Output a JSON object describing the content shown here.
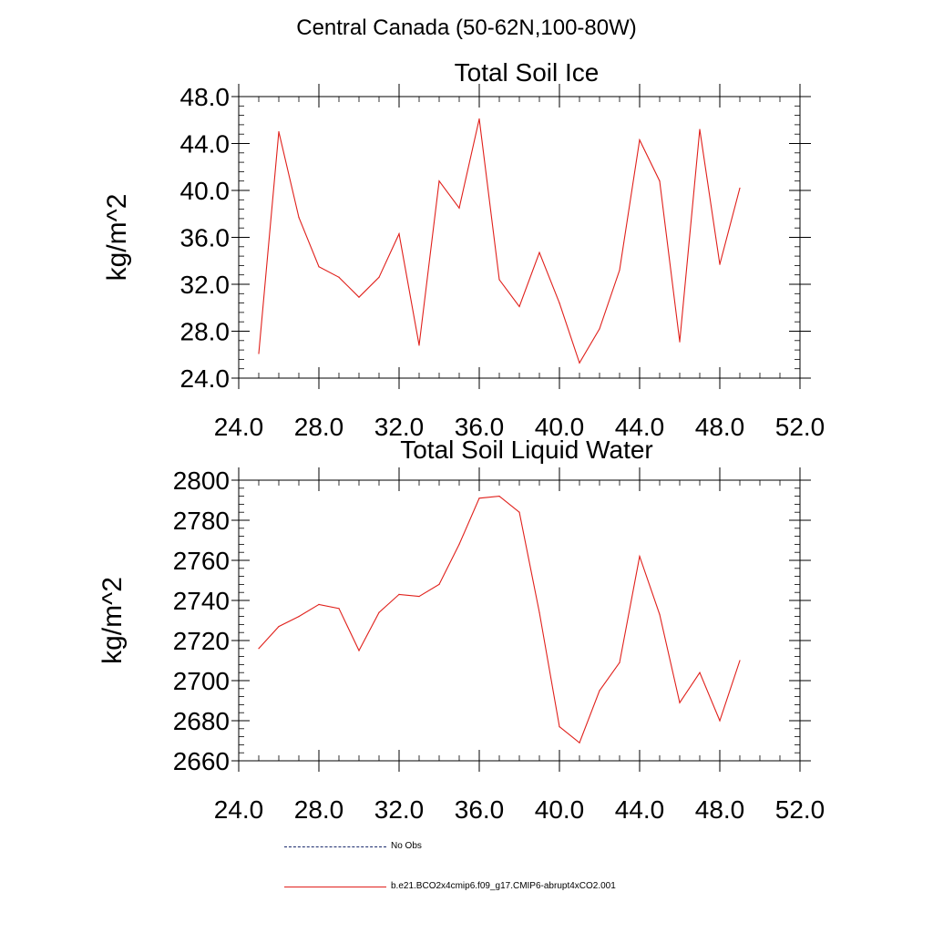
{
  "header": {
    "title": "Central Canada (50-62N,100-80W)"
  },
  "legend": {
    "items": [
      {
        "label": "No Obs",
        "color": "#1a2a6c",
        "style": "dashed"
      },
      {
        "label": "b.e21.BCO2x4cmip6.f09_g17.CMIP6-abrupt4xCO2.001",
        "color": "#e0201b",
        "style": "solid"
      }
    ]
  },
  "chart_data": [
    {
      "type": "line",
      "title": "Total Soil Ice",
      "xlabel": "",
      "ylabel": "kg/m^2",
      "xlim": [
        24,
        52
      ],
      "ylim": [
        24,
        48
      ],
      "x_ticks": [
        "24.0",
        "28.0",
        "32.0",
        "36.0",
        "40.0",
        "44.0",
        "48.0",
        "52.0"
      ],
      "y_ticks": [
        "24.0",
        "28.0",
        "32.0",
        "36.0",
        "40.0",
        "44.0",
        "48.0"
      ],
      "x_tick_values": [
        24,
        28,
        32,
        36,
        40,
        44,
        48,
        52
      ],
      "y_tick_values": [
        24,
        28,
        32,
        36,
        40,
        44,
        48
      ],
      "y_minor_step": 0.8,
      "series": [
        {
          "name": "b.e21.BCO2x4cmip6.f09_g17.CMIP6-abrupt4xCO2.001",
          "color": "#e0201b",
          "x": [
            25,
            26,
            27,
            28,
            29,
            30,
            31,
            32,
            33,
            34,
            35,
            36,
            37,
            38,
            39,
            40,
            41,
            42,
            43,
            44,
            45,
            46,
            47,
            48,
            49
          ],
          "y": [
            26.1,
            45.0,
            37.7,
            33.5,
            32.6,
            30.9,
            32.6,
            36.3,
            26.8,
            40.8,
            38.5,
            46.1,
            32.4,
            30.1,
            34.7,
            30.4,
            25.3,
            28.2,
            33.2,
            44.3,
            40.8,
            27.1,
            45.2,
            33.7,
            40.2
          ]
        }
      ]
    },
    {
      "type": "line",
      "title": "Total Soil Liquid Water",
      "xlabel": "",
      "ylabel": "kg/m^2",
      "xlim": [
        24,
        52
      ],
      "ylim": [
        2660,
        2800
      ],
      "x_ticks": [
        "24.0",
        "28.0",
        "32.0",
        "36.0",
        "40.0",
        "44.0",
        "48.0",
        "52.0"
      ],
      "y_ticks": [
        "2660",
        "2680",
        "2700",
        "2720",
        "2740",
        "2760",
        "2780",
        "2800"
      ],
      "x_tick_values": [
        24,
        28,
        32,
        36,
        40,
        44,
        48,
        52
      ],
      "y_tick_values": [
        2660,
        2680,
        2700,
        2720,
        2740,
        2760,
        2780,
        2800
      ],
      "y_minor_step": 4,
      "series": [
        {
          "name": "b.e21.BCO2x4cmip6.f09_g17.CMIP6-abrupt4xCO2.001",
          "color": "#e0201b",
          "x": [
            25,
            26,
            27,
            28,
            29,
            30,
            31,
            32,
            33,
            34,
            35,
            36,
            37,
            38,
            39,
            40,
            41,
            42,
            43,
            44,
            45,
            46,
            47,
            48,
            49
          ],
          "y": [
            2716,
            2727,
            2732,
            2738,
            2736,
            2715,
            2734,
            2743,
            2742,
            2748,
            2768,
            2791,
            2792,
            2784,
            2734,
            2677,
            2669,
            2695,
            2709,
            2762,
            2733,
            2689,
            2704,
            2680,
            2710
          ]
        }
      ]
    }
  ]
}
